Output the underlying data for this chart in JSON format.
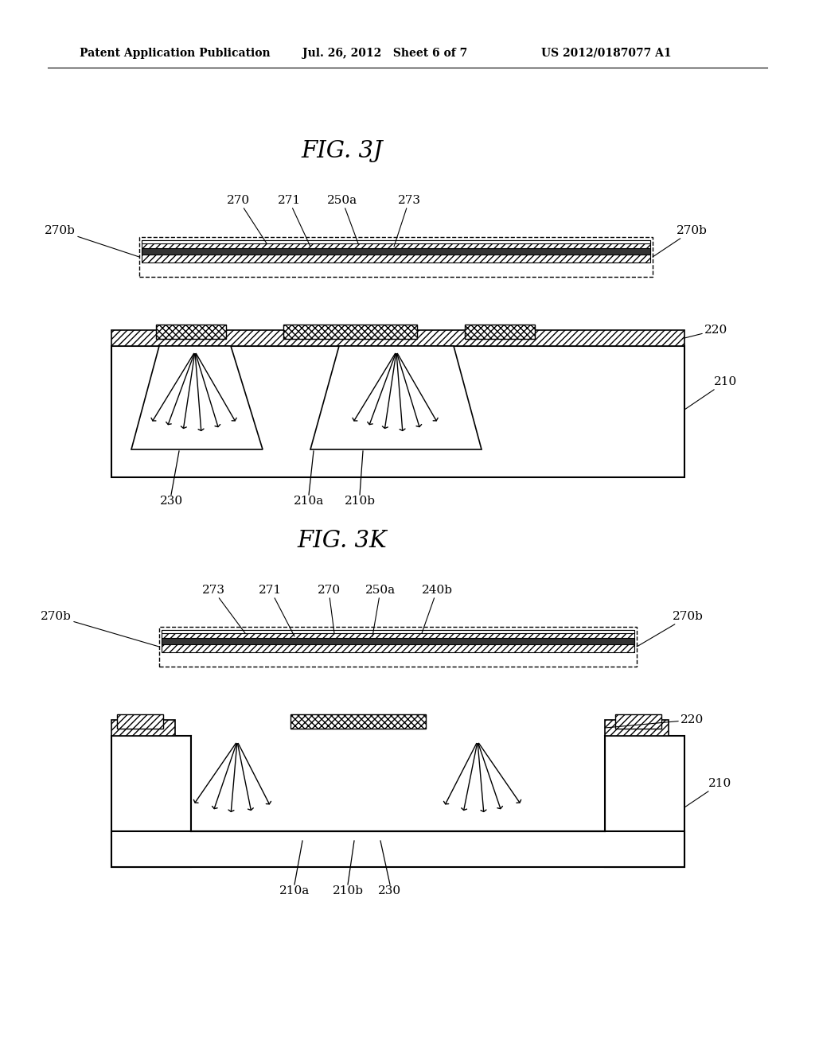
{
  "bg_color": "#ffffff",
  "header_left": "Patent Application Publication",
  "header_mid": "Jul. 26, 2012   Sheet 6 of 7",
  "header_right": "US 2012/0187077 A1",
  "fig3j_title": "FIG. 3J",
  "fig3k_title": "FIG. 3K",
  "lfs": 11
}
